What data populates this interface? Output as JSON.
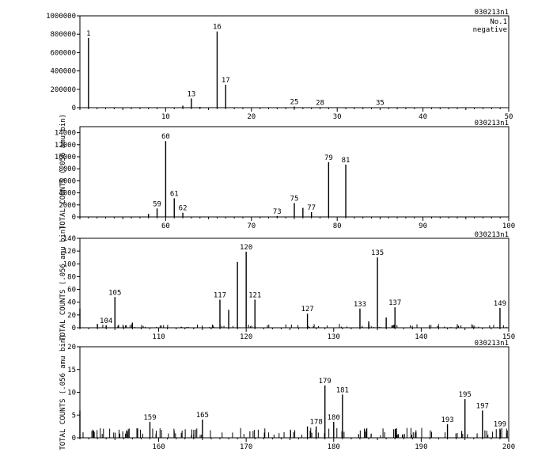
{
  "chart_data": [
    {
      "type": "bar",
      "file_label": "030213n1",
      "corner_text": [
        "No.1",
        "negative"
      ],
      "ylabel": "",
      "xlim": [
        0,
        50
      ],
      "ylim": [
        0,
        1000000
      ],
      "xticks": [
        10,
        20,
        30,
        40,
        50
      ],
      "yticks": [
        0,
        200000,
        400000,
        600000,
        800000,
        1000000
      ],
      "ytick_labels": [
        "0",
        "200000",
        "400000",
        "600000",
        "800000",
        "1000000"
      ],
      "peaks": [
        {
          "x": 1,
          "y": 760000,
          "label": "1"
        },
        {
          "x": 12,
          "y": 22000,
          "label": ""
        },
        {
          "x": 13,
          "y": 100000,
          "label": "13"
        },
        {
          "x": 14,
          "y": 8000,
          "label": ""
        },
        {
          "x": 16,
          "y": 830000,
          "label": "16"
        },
        {
          "x": 17,
          "y": 250000,
          "label": "17"
        },
        {
          "x": 24,
          "y": 4000,
          "label": ""
        },
        {
          "x": 25,
          "y": 12000,
          "label": "25"
        },
        {
          "x": 26,
          "y": 3000,
          "label": ""
        },
        {
          "x": 28,
          "y": 6000,
          "label": "28"
        },
        {
          "x": 35,
          "y": 4000,
          "label": "35"
        }
      ]
    },
    {
      "type": "bar",
      "file_label": "030213n1",
      "corner_text": [],
      "ylabel": "TOTAL COUNTS (.056 amu bin)",
      "xlim": [
        50,
        100
      ],
      "ylim": [
        0,
        15000
      ],
      "xticks": [
        60,
        70,
        80,
        90,
        100
      ],
      "yticks": [
        0,
        2000,
        4000,
        6000,
        8000,
        10000,
        12000,
        14000
      ],
      "ytick_labels": [
        "0",
        "2000",
        "4000",
        "6000",
        "8000",
        "10000",
        "12000",
        "14000"
      ],
      "peaks": [
        {
          "x": 58,
          "y": 500,
          "label": ""
        },
        {
          "x": 59,
          "y": 1400,
          "label": "59"
        },
        {
          "x": 60,
          "y": 12600,
          "label": "60"
        },
        {
          "x": 61,
          "y": 3100,
          "label": "61"
        },
        {
          "x": 62,
          "y": 700,
          "label": "62"
        },
        {
          "x": 73,
          "y": 150,
          "label": "73"
        },
        {
          "x": 75,
          "y": 2300,
          "label": "75"
        },
        {
          "x": 76,
          "y": 1500,
          "label": ""
        },
        {
          "x": 77,
          "y": 800,
          "label": "77"
        },
        {
          "x": 79,
          "y": 9100,
          "label": "79"
        },
        {
          "x": 81,
          "y": 8700,
          "label": "81"
        }
      ]
    },
    {
      "type": "bar",
      "file_label": "030213n1",
      "corner_text": [],
      "ylabel": "TOTAL COUNTS (.056 amu bin)",
      "xlim": [
        101,
        150
      ],
      "ylim": [
        0,
        140
      ],
      "xticks": [
        110,
        120,
        130,
        140,
        150
      ],
      "yticks": [
        0,
        20,
        40,
        60,
        80,
        100,
        120,
        140
      ],
      "ytick_labels": [
        "0",
        "20",
        "40",
        "60",
        "80",
        "100",
        "120",
        "140"
      ],
      "peaks": [
        {
          "x": 101,
          "y": 30,
          "label": ""
        },
        {
          "x": 103,
          "y": 6,
          "label": ""
        },
        {
          "x": 104,
          "y": 4,
          "label": "104"
        },
        {
          "x": 105,
          "y": 48,
          "label": "105"
        },
        {
          "x": 107,
          "y": 8,
          "label": ""
        },
        {
          "x": 117,
          "y": 44,
          "label": "117"
        },
        {
          "x": 118,
          "y": 28,
          "label": ""
        },
        {
          "x": 119,
          "y": 103,
          "label": ""
        },
        {
          "x": 120,
          "y": 119,
          "label": "120"
        },
        {
          "x": 121,
          "y": 44,
          "label": "121"
        },
        {
          "x": 127,
          "y": 22,
          "label": "127"
        },
        {
          "x": 133,
          "y": 30,
          "label": "133"
        },
        {
          "x": 134,
          "y": 10,
          "label": ""
        },
        {
          "x": 135,
          "y": 110,
          "label": "135"
        },
        {
          "x": 136,
          "y": 16,
          "label": ""
        },
        {
          "x": 137,
          "y": 32,
          "label": "137"
        },
        {
          "x": 149,
          "y": 31,
          "label": "149"
        }
      ]
    },
    {
      "type": "bar",
      "file_label": "030213n1",
      "corner_text": [],
      "ylabel": "TOTAL COUNTS (.056 amu bin)",
      "xlim": [
        151,
        200
      ],
      "ylim": [
        0,
        20
      ],
      "xticks": [
        160,
        170,
        180,
        190,
        200
      ],
      "yticks": [
        0,
        5,
        10,
        15,
        20
      ],
      "ytick_labels": [
        "0",
        "5",
        "10",
        "15",
        "20"
      ],
      "peaks": [
        {
          "x": 151,
          "y": 6,
          "label": ""
        },
        {
          "x": 159,
          "y": 3.5,
          "label": "159"
        },
        {
          "x": 165,
          "y": 4,
          "label": "165"
        },
        {
          "x": 177,
          "y": 2.5,
          "label": ""
        },
        {
          "x": 178,
          "y": 2.5,
          "label": "178"
        },
        {
          "x": 179,
          "y": 11.5,
          "label": "179"
        },
        {
          "x": 180,
          "y": 3.5,
          "label": "180"
        },
        {
          "x": 181,
          "y": 9.5,
          "label": "181"
        },
        {
          "x": 193,
          "y": 3,
          "label": "193"
        },
        {
          "x": 195,
          "y": 8.5,
          "label": "195"
        },
        {
          "x": 197,
          "y": 6,
          "label": "197"
        },
        {
          "x": 199,
          "y": 2,
          "label": "199"
        }
      ]
    }
  ]
}
